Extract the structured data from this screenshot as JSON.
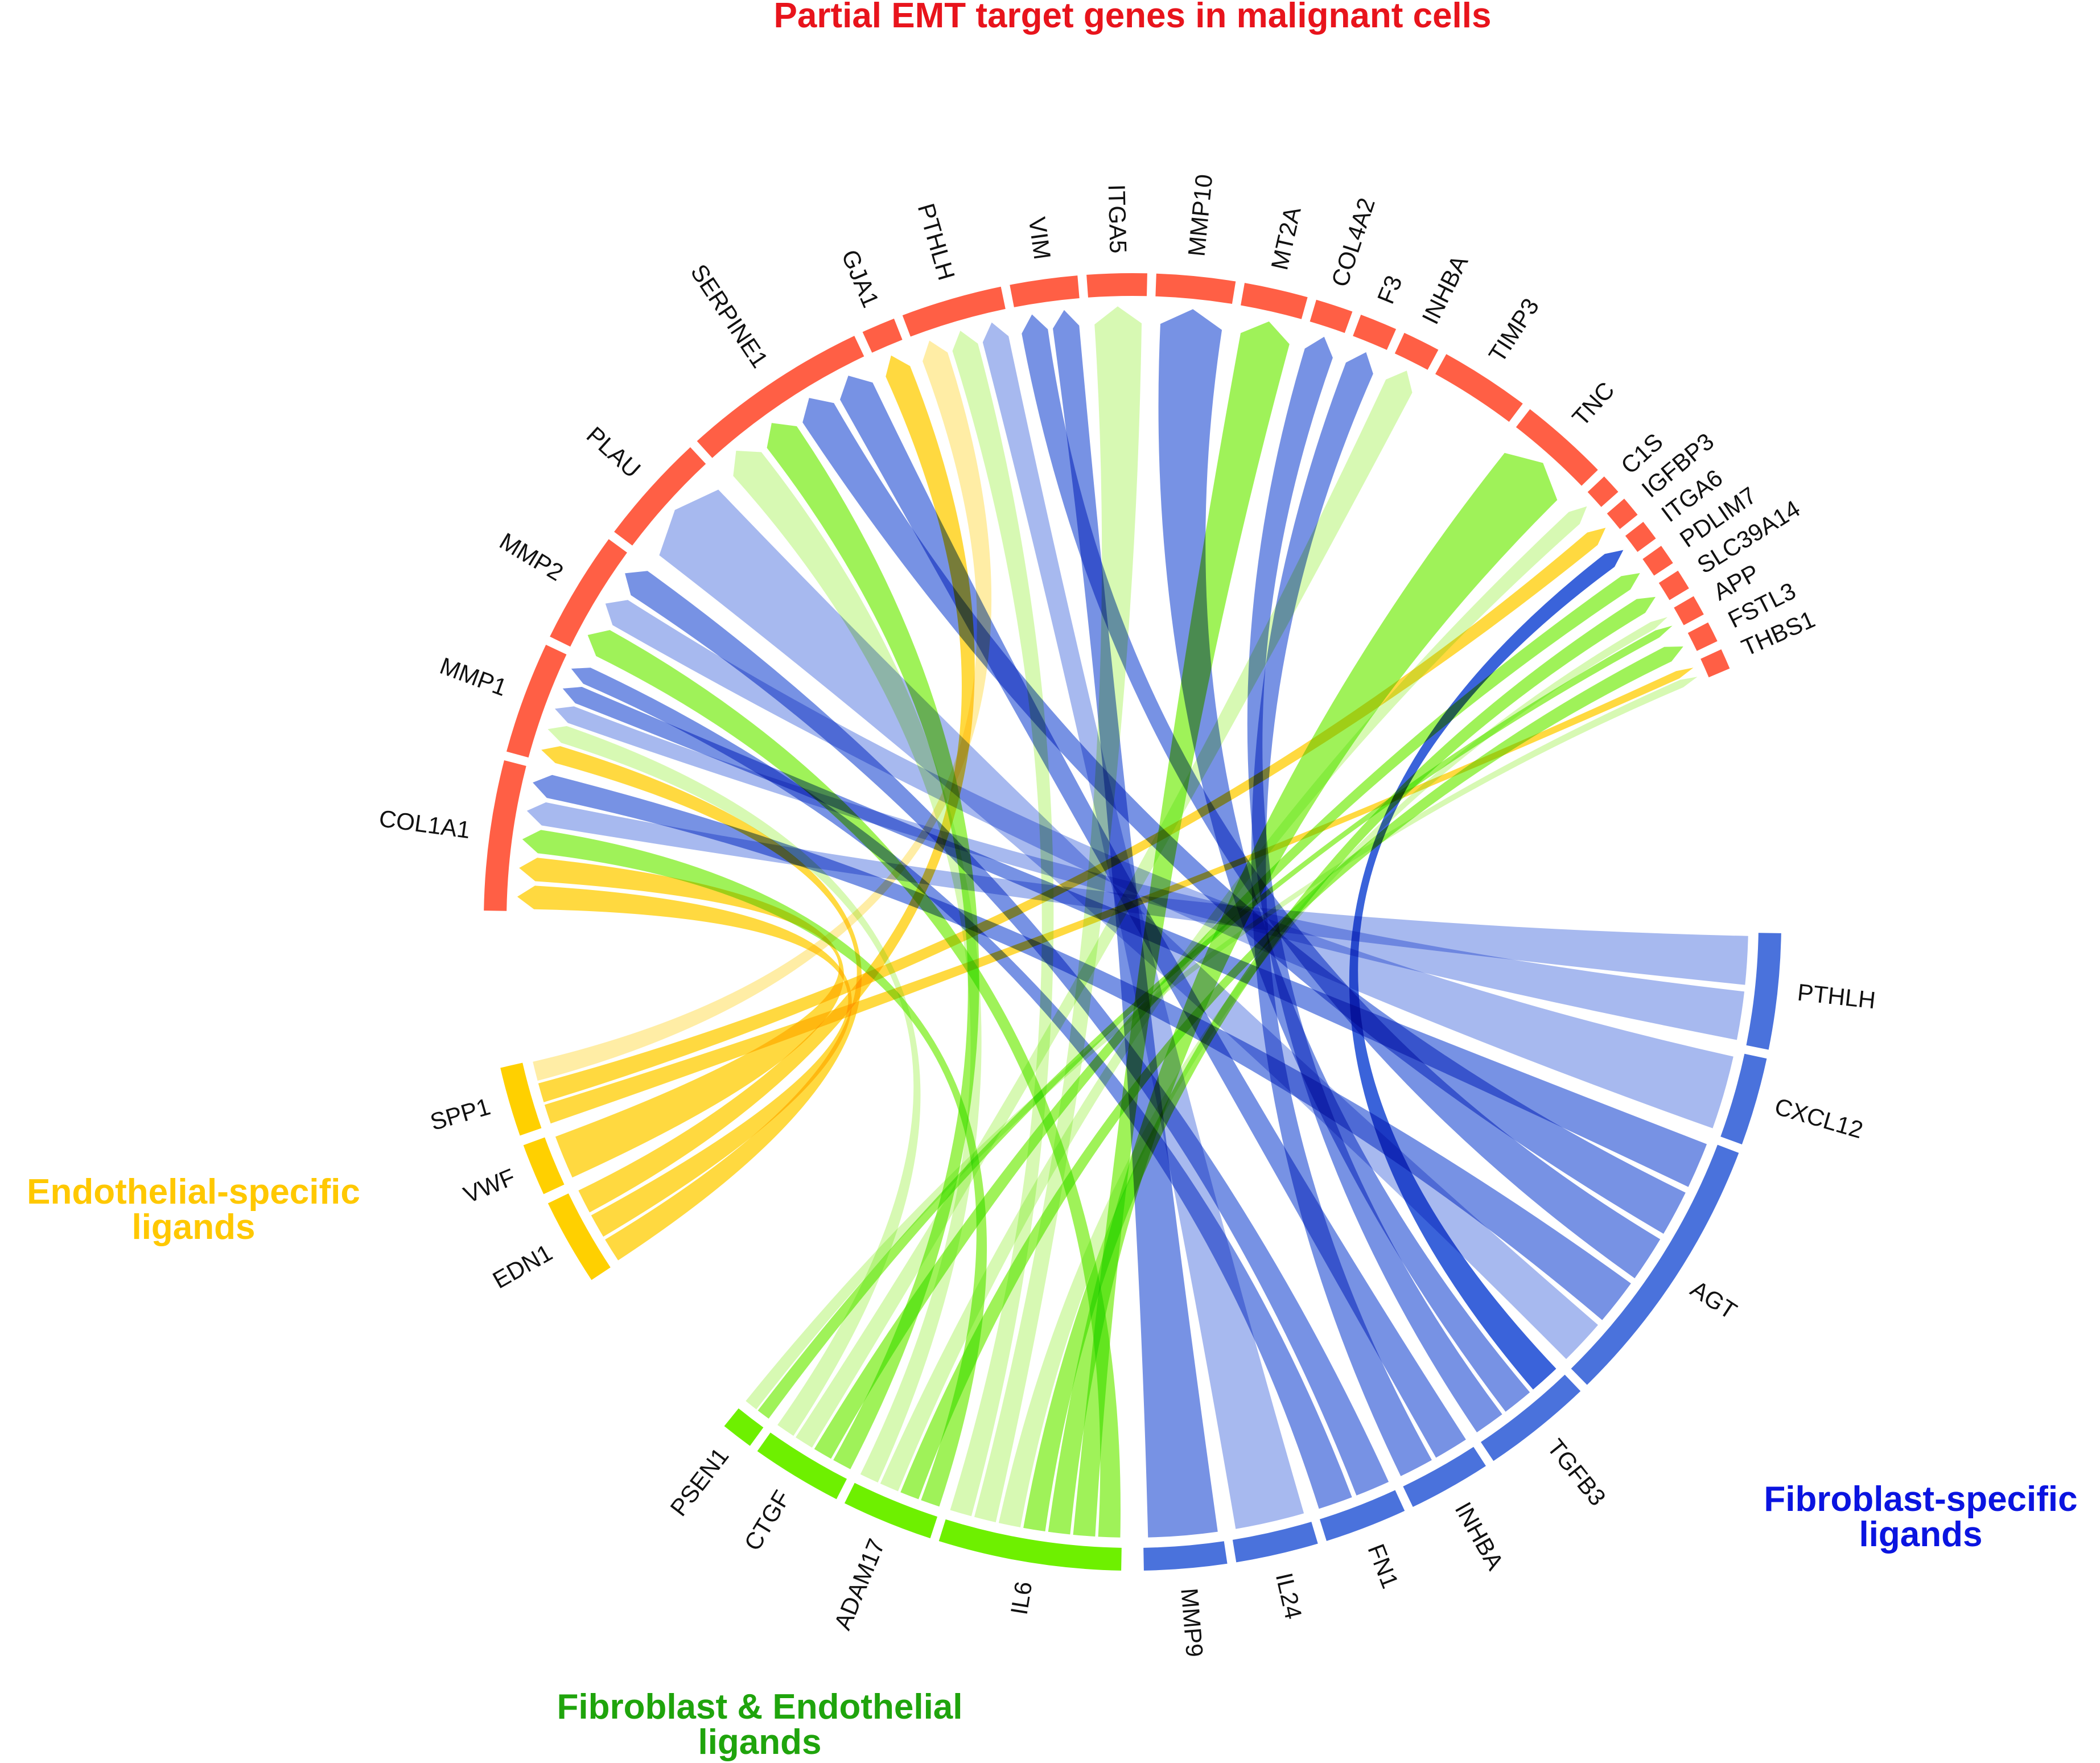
{
  "colors": {
    "targets": "#ff5f45",
    "endothelial": "#ffd000",
    "shared": "#6ef000",
    "fibroblast": "#4a72dc",
    "shared_chord": "#8ef03c",
    "shared_chord_light": "#c9f79a",
    "fibroblast_chord": "#5577dd",
    "fibroblast_chord_light": "#8aa2ea",
    "endothelial_chord": "#ffd21f"
  },
  "groups": [
    {
      "id": "targets",
      "title": [
        "Partial EMT target genes in malignant cells"
      ],
      "title_color": "#e8141c"
    },
    {
      "id": "endothelial",
      "title": [
        "Endothelial-specific",
        "ligands"
      ],
      "title_color": "#ffc800"
    },
    {
      "id": "shared",
      "title": [
        "Fibroblast & Endothelial",
        "ligands"
      ],
      "title_color": "#1fa40c"
    },
    {
      "id": "fibroblast",
      "title": [
        "Fibroblast-specific",
        "ligands"
      ],
      "title_color": "#0a14e0"
    }
  ],
  "targets": [
    "COL1A1",
    "MMP1",
    "MMP2",
    "PLAU",
    "SERPINE1",
    "GJA1",
    "PTHLH",
    "VIM",
    "ITGA5",
    "MMP10",
    "MT2A",
    "COL4A2",
    "F3",
    "INHBA",
    "TIMP3",
    "TNC",
    "C1S",
    "IGFBP3",
    "ITGA6",
    "PDLIM7",
    "SLC39A14",
    "APP",
    "FSTL3",
    "THBS1"
  ],
  "endothelial_ligands": [
    "SPP1",
    "VWF",
    "EDN1"
  ],
  "shared_ligands": [
    "PSEN1",
    "CTGF",
    "ADAM17",
    "IL6"
  ],
  "fibroblast_ligands": [
    "MMP9",
    "IL24",
    "FN1",
    "INHBA",
    "TGFB3",
    "AGT",
    "CXCL12",
    "PTHLH"
  ],
  "links": [
    {
      "from": "EDN1",
      "to": "MMP1",
      "tone": "endothelial"
    },
    {
      "from": "EDN1",
      "to": "COL1A1",
      "tone": "endothelial"
    },
    {
      "from": "EDN1",
      "to": "GJA1",
      "tone": "endothelial"
    },
    {
      "from": "VWF",
      "to": "COL1A1",
      "tone": "endothelial"
    },
    {
      "from": "SPP1",
      "to": "THBS1",
      "tone": "endothelial"
    },
    {
      "from": "SPP1",
      "to": "IGFBP3",
      "tone": "endothelial"
    },
    {
      "from": "SPP1",
      "to": "PTHLH",
      "tone": "endothelial_light"
    },
    {
      "from": "IL6",
      "to": "MMP2",
      "tone": "shared"
    },
    {
      "from": "IL6",
      "to": "MT2A",
      "tone": "shared"
    },
    {
      "from": "IL6",
      "to": "TNC",
      "tone": "shared"
    },
    {
      "from": "IL6",
      "to": "SLC39A14",
      "tone": "shared"
    },
    {
      "from": "IL6",
      "to": "APP",
      "tone": "shared_light"
    },
    {
      "from": "IL6",
      "to": "ITGA5",
      "tone": "shared_light"
    },
    {
      "from": "IL6",
      "to": "PTHLH",
      "tone": "shared_light"
    },
    {
      "from": "ADAM17",
      "to": "COL1A1",
      "tone": "shared"
    },
    {
      "from": "ADAM17",
      "to": "FSTL3",
      "tone": "shared"
    },
    {
      "from": "ADAM17",
      "to": "C1S",
      "tone": "shared_light"
    },
    {
      "from": "ADAM17",
      "to": "SERPINE1",
      "tone": "shared_light"
    },
    {
      "from": "CTGF",
      "to": "SERPINE1",
      "tone": "shared"
    },
    {
      "from": "CTGF",
      "to": "PDLIM7",
      "tone": "shared"
    },
    {
      "from": "CTGF",
      "to": "INHBA",
      "tone": "shared_light"
    },
    {
      "from": "CTGF",
      "to": "MMP1",
      "tone": "shared_light"
    },
    {
      "from": "PSEN1",
      "to": "APP",
      "tone": "shared"
    },
    {
      "from": "PSEN1",
      "to": "THBS1",
      "tone": "shared_light"
    },
    {
      "from": "PTHLH",
      "to": "COL1A1",
      "tone": "fibroblast_light"
    },
    {
      "from": "PTHLH",
      "to": "MMP1",
      "tone": "fibroblast_light"
    },
    {
      "from": "CXCL12",
      "to": "MMP2",
      "tone": "fibroblast_light"
    },
    {
      "from": "AGT",
      "to": "MMP1",
      "tone": "fibroblast"
    },
    {
      "from": "AGT",
      "to": "SERPINE1",
      "tone": "fibroblast"
    },
    {
      "from": "AGT",
      "to": "VIM",
      "tone": "fibroblast"
    },
    {
      "from": "AGT",
      "to": "COL1A1",
      "tone": "fibroblast"
    },
    {
      "from": "AGT",
      "to": "PLAU",
      "tone": "fibroblast_light"
    },
    {
      "from": "TGFB3",
      "to": "ITGA6",
      "tone": "fibroblast_dark"
    },
    {
      "from": "TGFB3",
      "to": "MMP10",
      "tone": "fibroblast"
    },
    {
      "from": "TGFB3",
      "to": "COL4A2",
      "tone": "fibroblast"
    },
    {
      "from": "INHBA",
      "to": "SERPINE1",
      "tone": "fibroblast"
    },
    {
      "from": "INHBA",
      "to": "F3",
      "tone": "fibroblast"
    },
    {
      "from": "FN1",
      "to": "MMP2",
      "tone": "fibroblast"
    },
    {
      "from": "FN1",
      "to": "MMP1",
      "tone": "fibroblast"
    },
    {
      "from": "IL24",
      "to": "PTHLH",
      "tone": "fibroblast_light"
    },
    {
      "from": "MMP9",
      "to": "VIM",
      "tone": "fibroblast"
    }
  ]
}
